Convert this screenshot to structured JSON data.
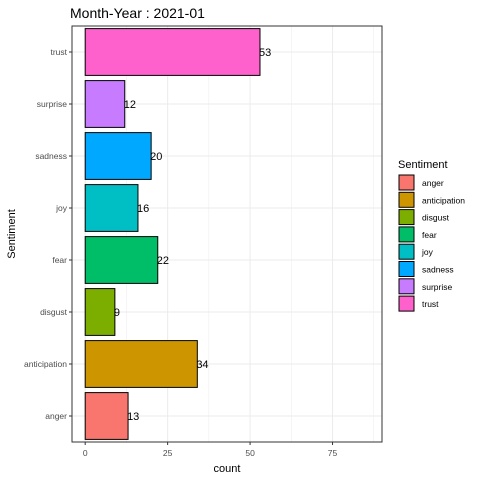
{
  "chart_data": {
    "type": "bar",
    "orientation": "horizontal",
    "title": "Month-Year : 2021-01",
    "xlabel": "count",
    "ylabel": "Sentiment",
    "categories": [
      "anger",
      "anticipation",
      "disgust",
      "fear",
      "joy",
      "sadness",
      "surprise",
      "trust"
    ],
    "values": [
      13,
      34,
      9,
      22,
      16,
      20,
      12,
      53
    ],
    "colors": [
      "#F8766D",
      "#CD9600",
      "#7CAE00",
      "#00BE67",
      "#00BFC4",
      "#00A9FF",
      "#C77CFF",
      "#FF61CC"
    ],
    "xlim": [
      -4,
      90
    ],
    "xticks": [
      0,
      25,
      50,
      75
    ],
    "xtick_labels": [
      "0",
      "25",
      "50",
      "75"
    ],
    "grid": true,
    "panel_border": true,
    "legend": {
      "title": "Sentiment",
      "position": "right",
      "items": [
        "anger",
        "anticipation",
        "disgust",
        "fear",
        "joy",
        "sadness",
        "surprise",
        "trust"
      ]
    }
  }
}
